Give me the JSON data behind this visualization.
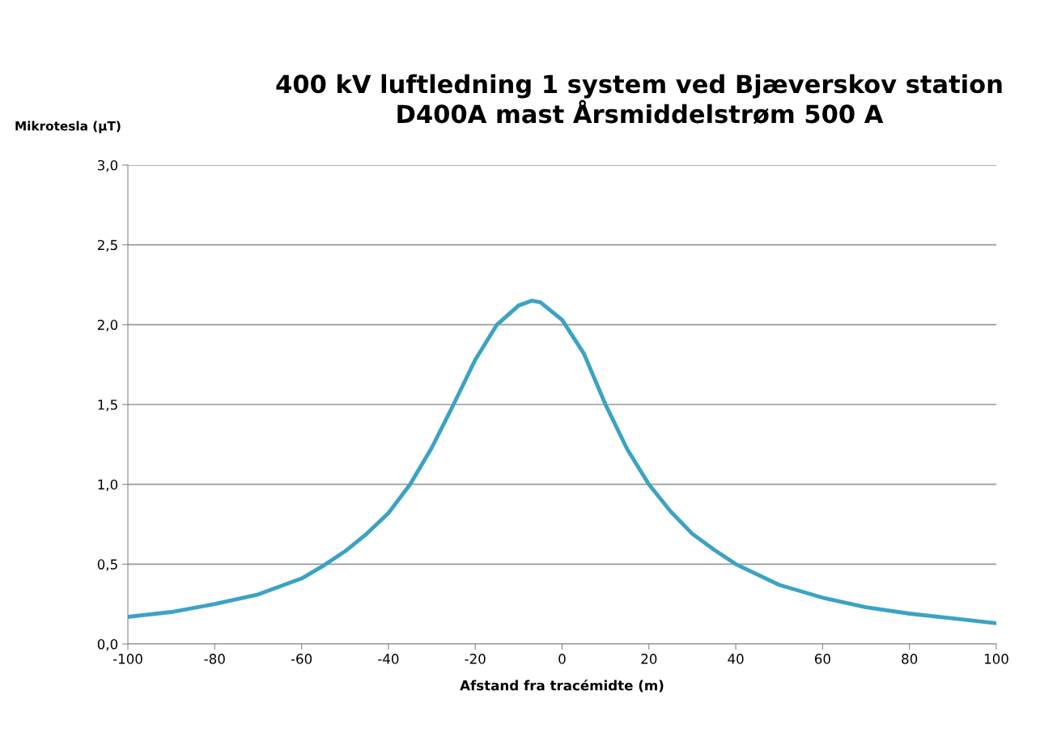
{
  "chart_data": {
    "type": "line",
    "title": "400 kV luftledning 1 system ved Bjæverskov station\nD400A mast Årsmiddelstrøm 500 A",
    "xlabel": "Afstand fra tracémidte (m)",
    "ylabel": "Mikrotesla (µT)",
    "x": [
      -100,
      -90,
      -80,
      -70,
      -60,
      -55,
      -50,
      -45,
      -40,
      -35,
      -30,
      -25,
      -20,
      -15,
      -10,
      -7,
      -5,
      0,
      5,
      10,
      15,
      20,
      25,
      30,
      35,
      40,
      50,
      60,
      70,
      80,
      90,
      100
    ],
    "series": [
      {
        "color": "#3ba3c4",
        "values": [
          0.17,
          0.2,
          0.25,
          0.31,
          0.41,
          0.49,
          0.58,
          0.69,
          0.82,
          1.0,
          1.23,
          1.5,
          1.78,
          2.0,
          2.12,
          2.15,
          2.14,
          2.03,
          1.82,
          1.5,
          1.22,
          1.0,
          0.83,
          0.69,
          0.59,
          0.5,
          0.37,
          0.29,
          0.23,
          0.19,
          0.16,
          0.13
        ]
      }
    ],
    "xlim": [
      -100,
      100
    ],
    "xticks": [
      -100,
      -80,
      -60,
      -40,
      -20,
      0,
      20,
      40,
      60,
      80,
      100
    ],
    "ylim": [
      0,
      3
    ],
    "yticks": [
      {
        "value": 0,
        "label": "0,0"
      },
      {
        "value": 0.5,
        "label": "0,5"
      },
      {
        "value": 1,
        "label": "1,0"
      },
      {
        "value": 1.5,
        "label": "1,5"
      },
      {
        "value": 2,
        "label": "2,0"
      },
      {
        "value": 2.5,
        "label": "2,5"
      },
      {
        "value": 3,
        "label": "3,0"
      }
    ],
    "grid": "y",
    "marker": "none",
    "line_style": "solid"
  }
}
